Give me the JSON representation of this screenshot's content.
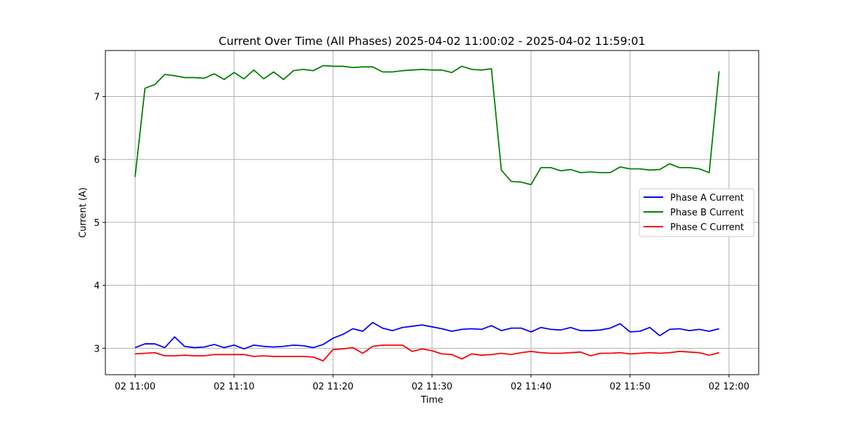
{
  "chart_data": {
    "type": "line",
    "title": "Current Over Time (All Phases) 2025-04-02 11:00:02 - 2025-04-02 11:59:01",
    "xlabel": "Time",
    "ylabel": "Current (A)",
    "x_unit": "minutes after 2025-04-02 11:00",
    "xlim": [
      -3,
      63
    ],
    "ylim": [
      2.58,
      7.73
    ],
    "grid": true,
    "legend_position": "center-right",
    "x_ticks": [
      {
        "value": 0,
        "label": "02 11:00"
      },
      {
        "value": 10,
        "label": "02 11:10"
      },
      {
        "value": 20,
        "label": "02 11:20"
      },
      {
        "value": 30,
        "label": "02 11:30"
      },
      {
        "value": 40,
        "label": "02 11:40"
      },
      {
        "value": 50,
        "label": "02 11:50"
      },
      {
        "value": 60,
        "label": "02 12:00"
      }
    ],
    "y_ticks": [
      {
        "value": 3,
        "label": "3"
      },
      {
        "value": 4,
        "label": "4"
      },
      {
        "value": 5,
        "label": "5"
      },
      {
        "value": 6,
        "label": "6"
      },
      {
        "value": 7,
        "label": "7"
      }
    ],
    "x": [
      0,
      1,
      2,
      3,
      4,
      5,
      6,
      7,
      8,
      9,
      10,
      11,
      12,
      13,
      14,
      15,
      16,
      17,
      18,
      19,
      20,
      21,
      22,
      23,
      24,
      25,
      26,
      27,
      28,
      29,
      30,
      31,
      32,
      33,
      34,
      35,
      36,
      37,
      38,
      39,
      40,
      41,
      42,
      43,
      44,
      45,
      46,
      47,
      48,
      49,
      50,
      51,
      52,
      53,
      54,
      55,
      56,
      57,
      58,
      59
    ],
    "series": [
      {
        "name": "Phase A Current",
        "color": "#0000ff",
        "values": [
          3.01,
          3.07,
          3.07,
          3.01,
          3.18,
          3.03,
          3.01,
          3.02,
          3.06,
          3.01,
          3.05,
          2.99,
          3.05,
          3.03,
          3.02,
          3.03,
          3.05,
          3.04,
          3.01,
          3.06,
          3.16,
          3.22,
          3.31,
          3.27,
          3.41,
          3.32,
          3.28,
          3.33,
          3.35,
          3.37,
          3.34,
          3.31,
          3.27,
          3.3,
          3.31,
          3.3,
          3.36,
          3.28,
          3.32,
          3.32,
          3.26,
          3.33,
          3.3,
          3.29,
          3.33,
          3.28,
          3.28,
          3.29,
          3.32,
          3.39,
          3.26,
          3.27,
          3.33,
          3.2,
          3.3,
          3.31,
          3.28,
          3.3,
          3.27,
          3.31
        ]
      },
      {
        "name": "Phase B Current",
        "color": "#008000",
        "values": [
          5.72,
          7.13,
          7.19,
          7.35,
          7.33,
          7.3,
          7.3,
          7.29,
          7.36,
          7.27,
          7.38,
          7.28,
          7.42,
          7.28,
          7.39,
          7.27,
          7.41,
          7.43,
          7.41,
          7.49,
          7.48,
          7.48,
          7.46,
          7.47,
          7.47,
          7.39,
          7.39,
          7.41,
          7.42,
          7.43,
          7.42,
          7.42,
          7.38,
          7.48,
          7.43,
          7.42,
          7.44,
          5.83,
          5.65,
          5.64,
          5.6,
          5.87,
          5.87,
          5.82,
          5.84,
          5.79,
          5.8,
          5.79,
          5.79,
          5.88,
          5.85,
          5.85,
          5.83,
          5.84,
          5.93,
          5.87,
          5.87,
          5.85,
          5.79,
          7.4
        ]
      },
      {
        "name": "Phase C Current",
        "color": "#ff0000",
        "values": [
          2.91,
          2.92,
          2.93,
          2.88,
          2.88,
          2.89,
          2.88,
          2.88,
          2.9,
          2.9,
          2.9,
          2.9,
          2.87,
          2.88,
          2.87,
          2.87,
          2.87,
          2.87,
          2.86,
          2.8,
          2.98,
          2.99,
          3.01,
          2.92,
          3.03,
          3.05,
          3.05,
          3.05,
          2.95,
          2.99,
          2.96,
          2.91,
          2.9,
          2.83,
          2.91,
          2.89,
          2.9,
          2.92,
          2.9,
          2.93,
          2.95,
          2.93,
          2.92,
          2.92,
          2.93,
          2.94,
          2.88,
          2.92,
          2.92,
          2.93,
          2.91,
          2.92,
          2.93,
          2.92,
          2.93,
          2.95,
          2.94,
          2.93,
          2.89,
          2.93
        ]
      }
    ]
  }
}
